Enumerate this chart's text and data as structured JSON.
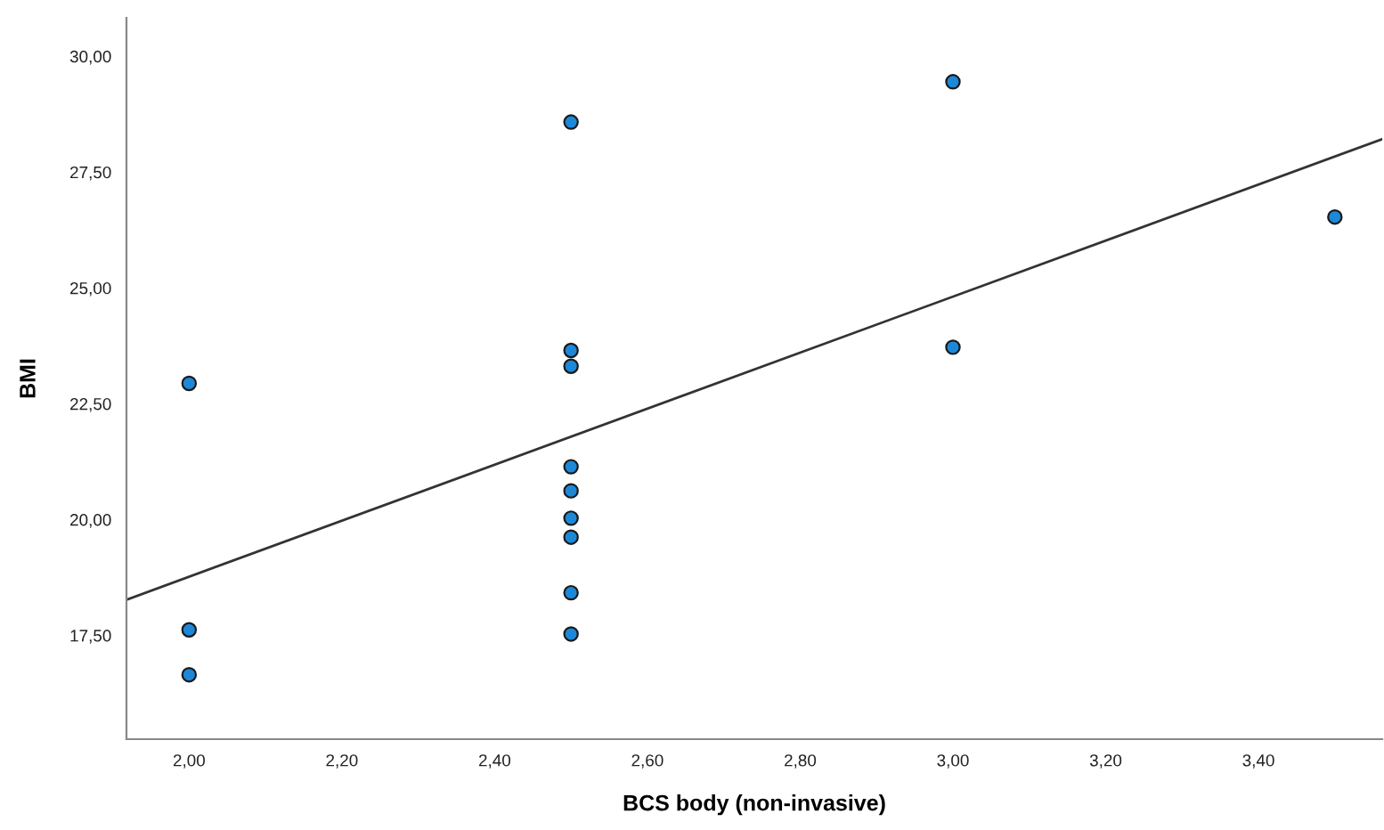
{
  "chart_data": {
    "type": "scatter",
    "xlabel": "BCS body (non-invasive)",
    "ylabel": "BMI",
    "grid": false,
    "series": [
      {
        "marker": "circle",
        "color": "#1e88d8",
        "x": [
          2.0,
          2.0,
          2.0,
          2.5,
          2.5,
          2.5,
          2.5,
          2.5,
          2.5,
          2.5,
          2.5,
          2.5,
          3.0,
          3.0,
          3.5
        ],
        "values": [
          22.94,
          17.62,
          16.65,
          28.58,
          23.65,
          23.31,
          21.14,
          20.62,
          20.03,
          19.62,
          18.42,
          17.53,
          29.45,
          23.72,
          26.53
        ]
      },
      {
        "type": "line",
        "color": "#333333",
        "x": [
          1.918,
          3.562
        ],
        "values": [
          18.27,
          28.21
        ]
      }
    ],
    "xlim": [
      1.918,
      3.562
    ],
    "ylim": [
      15.26,
      30.83
    ],
    "xticks": [
      {
        "value": 2.0,
        "label": "2,00"
      },
      {
        "value": 2.2,
        "label": "2,20"
      },
      {
        "value": 2.4,
        "label": "2,40"
      },
      {
        "value": 2.6,
        "label": "2,60"
      },
      {
        "value": 2.8,
        "label": "2,80"
      },
      {
        "value": 3.0,
        "label": "3,00"
      },
      {
        "value": 3.2,
        "label": "3,20"
      },
      {
        "value": 3.4,
        "label": "3,40"
      }
    ],
    "yticks": [
      {
        "value": 17.5,
        "label": "17,50"
      },
      {
        "value": 20.0,
        "label": "20,00"
      },
      {
        "value": 22.5,
        "label": "22,50"
      },
      {
        "value": 25.0,
        "label": "25,00"
      },
      {
        "value": 27.5,
        "label": "27,50"
      },
      {
        "value": 30.0,
        "label": "30,00"
      }
    ]
  }
}
